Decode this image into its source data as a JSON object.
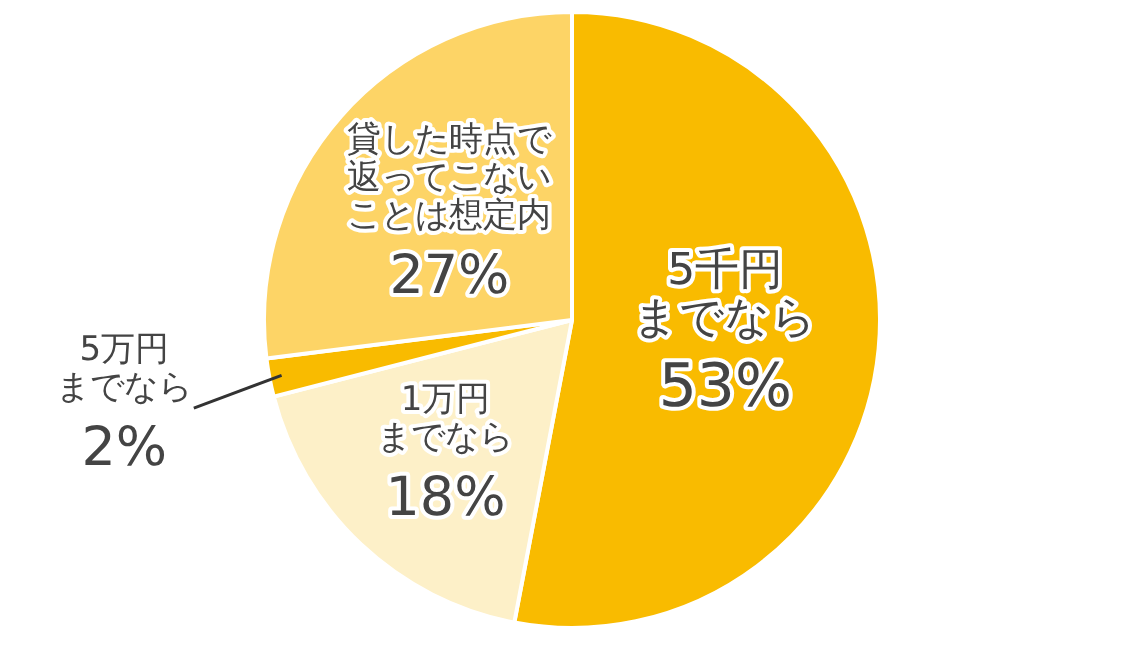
{
  "chart_data": {
    "type": "pie",
    "categories": [
      "5千円までなら",
      "1万円までなら",
      "5万円までなら",
      "貸した時点で返ってこないことは想定内"
    ],
    "values": [
      53,
      18,
      2,
      27
    ],
    "colors": [
      "#f9bb00",
      "#fdf0c8",
      "#f9bb00",
      "#fdd466"
    ],
    "value_labels": [
      "53%",
      "18%",
      "2%",
      "27%"
    ],
    "legend": false
  }
}
